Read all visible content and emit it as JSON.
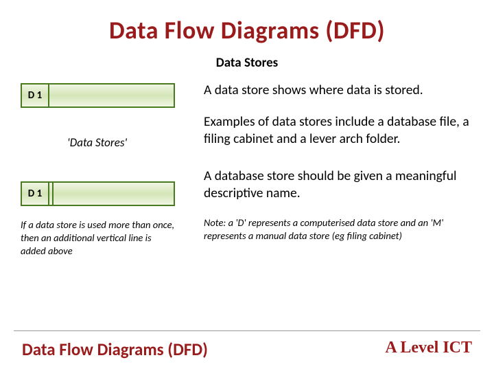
{
  "title": "Data Flow Diagrams (DFD)",
  "subtitle": "Data Stores",
  "left": {
    "ds1_id": "D 1",
    "caption1": "'Data Stores'",
    "ds2_id": "D 1",
    "caption2": "If a data store is used more than once, then an additional vertical line is added above"
  },
  "right": {
    "p1": "A data store shows where data is stored.",
    "p2": "Examples of data stores include a database file, a filing cabinet and a lever arch folder.",
    "p3": "A database store should be given a meaningful descriptive name.",
    "note": "Note: a 'D' represents a computerised data store and an 'M' represents a manual data store (eg filing cabinet)"
  },
  "footer": {
    "left": "Data Flow Diagrams (DFD)",
    "right": "A Level ICT"
  },
  "colors": {
    "title_color": "#9a1b1b",
    "datastore_border": "#4a7a1f",
    "datastore_fill_top": "#f0f6e3",
    "datastore_fill_mid": "#d4e5b8",
    "background": "#ffffff"
  }
}
